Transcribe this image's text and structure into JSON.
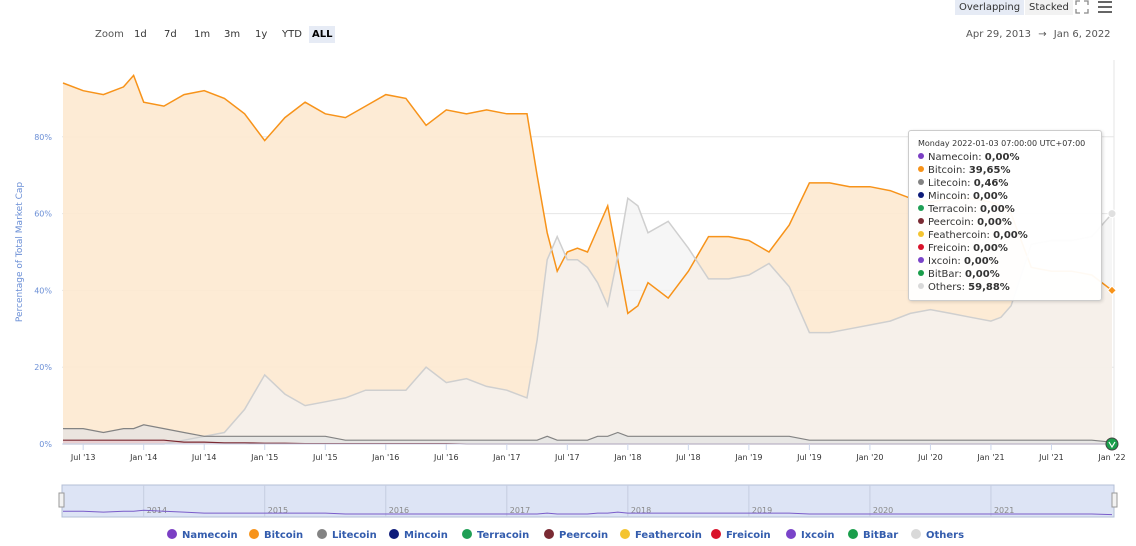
{
  "toolbar": {
    "overlapping_label": "Overlapping",
    "stacked_label": "Stacked"
  },
  "zoom": {
    "label": "Zoom",
    "buttons": [
      "1d",
      "7d",
      "1m",
      "3m",
      "1y",
      "YTD",
      "ALL"
    ],
    "active": "ALL"
  },
  "range": {
    "from": "Apr 29, 2013",
    "separator": "→",
    "to": "Jan 6, 2022"
  },
  "tooltip": {
    "title": "Monday 2022-01-03 07:00:00 UTC+07:00",
    "rows": [
      {
        "name": "Namecoin",
        "value": "0,00%",
        "color": "#7b3fc4"
      },
      {
        "name": "Bitcoin",
        "value": "39,65%",
        "color": "#f7931a"
      },
      {
        "name": "Litecoin",
        "value": "0,46%",
        "color": "#838383"
      },
      {
        "name": "Mincoin",
        "value": "0,00%",
        "color": "#0d1b7a"
      },
      {
        "name": "Terracoin",
        "value": "0,00%",
        "color": "#1f9f55"
      },
      {
        "name": "Peercoin",
        "value": "0,00%",
        "color": "#7a2a33"
      },
      {
        "name": "Feathercoin",
        "value": "0,00%",
        "color": "#f4c430"
      },
      {
        "name": "Freicoin",
        "value": "0,00%",
        "color": "#d9122a"
      },
      {
        "name": "Ixcoin",
        "value": "0,00%",
        "color": "#7a44c9"
      },
      {
        "name": "BitBar",
        "value": "0,00%",
        "color": "#1a9e4b"
      },
      {
        "name": "Others",
        "value": "59,88%",
        "color": "#d9d9d9"
      }
    ]
  },
  "chart_data": {
    "type": "area",
    "ylabel": "Percentage of Total Market Cap",
    "ylim": [
      0,
      100
    ],
    "yticks": [
      "0%",
      "20%",
      "40%",
      "60%",
      "80%"
    ],
    "xticks": [
      "Jul '13",
      "Jan '14",
      "Jul '14",
      "Jan '15",
      "Jul '15",
      "Jan '16",
      "Jul '16",
      "Jan '17",
      "Jul '17",
      "Jan '18",
      "Jul '18",
      "Jan '19",
      "Jul '19",
      "Jan '20",
      "Jul '20",
      "Jan '21",
      "Jul '21",
      "Jan '22"
    ],
    "navigator_labels": [
      "2014",
      "2015",
      "2016",
      "2017",
      "2018",
      "2019",
      "2020",
      "2021"
    ],
    "grid": true,
    "legend_position": "bottom",
    "x": [
      "2013-05",
      "2013-07",
      "2013-09",
      "2013-11",
      "2013-12",
      "2014-01",
      "2014-03",
      "2014-05",
      "2014-07",
      "2014-09",
      "2014-11",
      "2015-01",
      "2015-03",
      "2015-05",
      "2015-07",
      "2015-09",
      "2015-11",
      "2016-01",
      "2016-03",
      "2016-05",
      "2016-07",
      "2016-09",
      "2016-11",
      "2017-01",
      "2017-03",
      "2017-04",
      "2017-05",
      "2017-06",
      "2017-07",
      "2017-08",
      "2017-09",
      "2017-10",
      "2017-11",
      "2017-12",
      "2018-01",
      "2018-02",
      "2018-03",
      "2018-05",
      "2018-07",
      "2018-09",
      "2018-11",
      "2019-01",
      "2019-03",
      "2019-05",
      "2019-07",
      "2019-09",
      "2019-11",
      "2020-01",
      "2020-03",
      "2020-05",
      "2020-07",
      "2020-09",
      "2020-11",
      "2021-01",
      "2021-02",
      "2021-03",
      "2021-05",
      "2021-07",
      "2021-09",
      "2021-11",
      "2022-01"
    ],
    "series": [
      {
        "name": "Bitcoin",
        "color": "#f7931a",
        "values": [
          94,
          92,
          91,
          93,
          96,
          89,
          88,
          91,
          92,
          90,
          86,
          79,
          85,
          89,
          86,
          85,
          88,
          91,
          90,
          83,
          87,
          86,
          87,
          86,
          86,
          70,
          55,
          45,
          50,
          51,
          50,
          56,
          62,
          48,
          34,
          36,
          42,
          38,
          45,
          54,
          54,
          53,
          50,
          57,
          68,
          68,
          67,
          67,
          66,
          64,
          63,
          64,
          64,
          63,
          62,
          60,
          46,
          45,
          45,
          44,
          40
        ]
      },
      {
        "name": "Others",
        "color": "#d9d9d9",
        "values": [
          0,
          0,
          0,
          0,
          0,
          0,
          0,
          1,
          2,
          3,
          9,
          18,
          13,
          10,
          11,
          12,
          14,
          14,
          14,
          20,
          16,
          17,
          15,
          14,
          12,
          27,
          48,
          54,
          48,
          48,
          46,
          42,
          36,
          49,
          64,
          62,
          55,
          58,
          51,
          43,
          43,
          44,
          47,
          41,
          29,
          29,
          30,
          31,
          32,
          34,
          35,
          34,
          33,
          32,
          33,
          36,
          52,
          53,
          53,
          54,
          60
        ]
      },
      {
        "name": "Litecoin",
        "color": "#838383",
        "values": [
          4,
          4,
          3,
          4,
          4,
          5,
          4,
          3,
          2,
          2,
          2,
          2,
          2,
          2,
          2,
          1,
          1,
          1,
          1,
          1,
          1,
          1,
          1,
          1,
          1,
          1,
          2,
          1,
          1,
          1,
          1,
          2,
          2,
          3,
          2,
          2,
          2,
          2,
          2,
          2,
          2,
          2,
          2,
          2,
          1,
          1,
          1,
          1,
          1,
          1,
          1,
          1,
          1,
          1,
          1,
          1,
          1,
          1,
          1,
          1,
          0.46
        ]
      },
      {
        "name": "Peercoin",
        "color": "#7a2a33",
        "values": [
          1,
          1,
          1,
          1,
          1,
          1,
          1,
          0.5,
          0.5,
          0.3,
          0.3,
          0.2,
          0.2,
          0.1,
          0.1,
          0.1,
          0.1,
          0.1,
          0.1,
          0.1,
          0.1,
          0,
          0,
          0,
          0,
          0,
          0,
          0,
          0,
          0,
          0,
          0,
          0,
          0,
          0,
          0,
          0,
          0,
          0,
          0,
          0,
          0,
          0,
          0,
          0,
          0,
          0,
          0,
          0,
          0,
          0,
          0,
          0,
          0,
          0,
          0,
          0,
          0,
          0,
          0,
          0
        ]
      }
    ]
  },
  "legend": [
    {
      "name": "Namecoin",
      "color": "#7b3fc4"
    },
    {
      "name": "Bitcoin",
      "color": "#f7931a"
    },
    {
      "name": "Litecoin",
      "color": "#838383"
    },
    {
      "name": "Mincoin",
      "color": "#0d1b7a"
    },
    {
      "name": "Terracoin",
      "color": "#1f9f55"
    },
    {
      "name": "Peercoin",
      "color": "#7a2a33"
    },
    {
      "name": "Feathercoin",
      "color": "#f4c430"
    },
    {
      "name": "Freicoin",
      "color": "#d9122a"
    },
    {
      "name": "Ixcoin",
      "color": "#7a44c9"
    },
    {
      "name": "BitBar",
      "color": "#1a9e4b"
    },
    {
      "name": "Others",
      "color": "#d9d9d9"
    }
  ]
}
